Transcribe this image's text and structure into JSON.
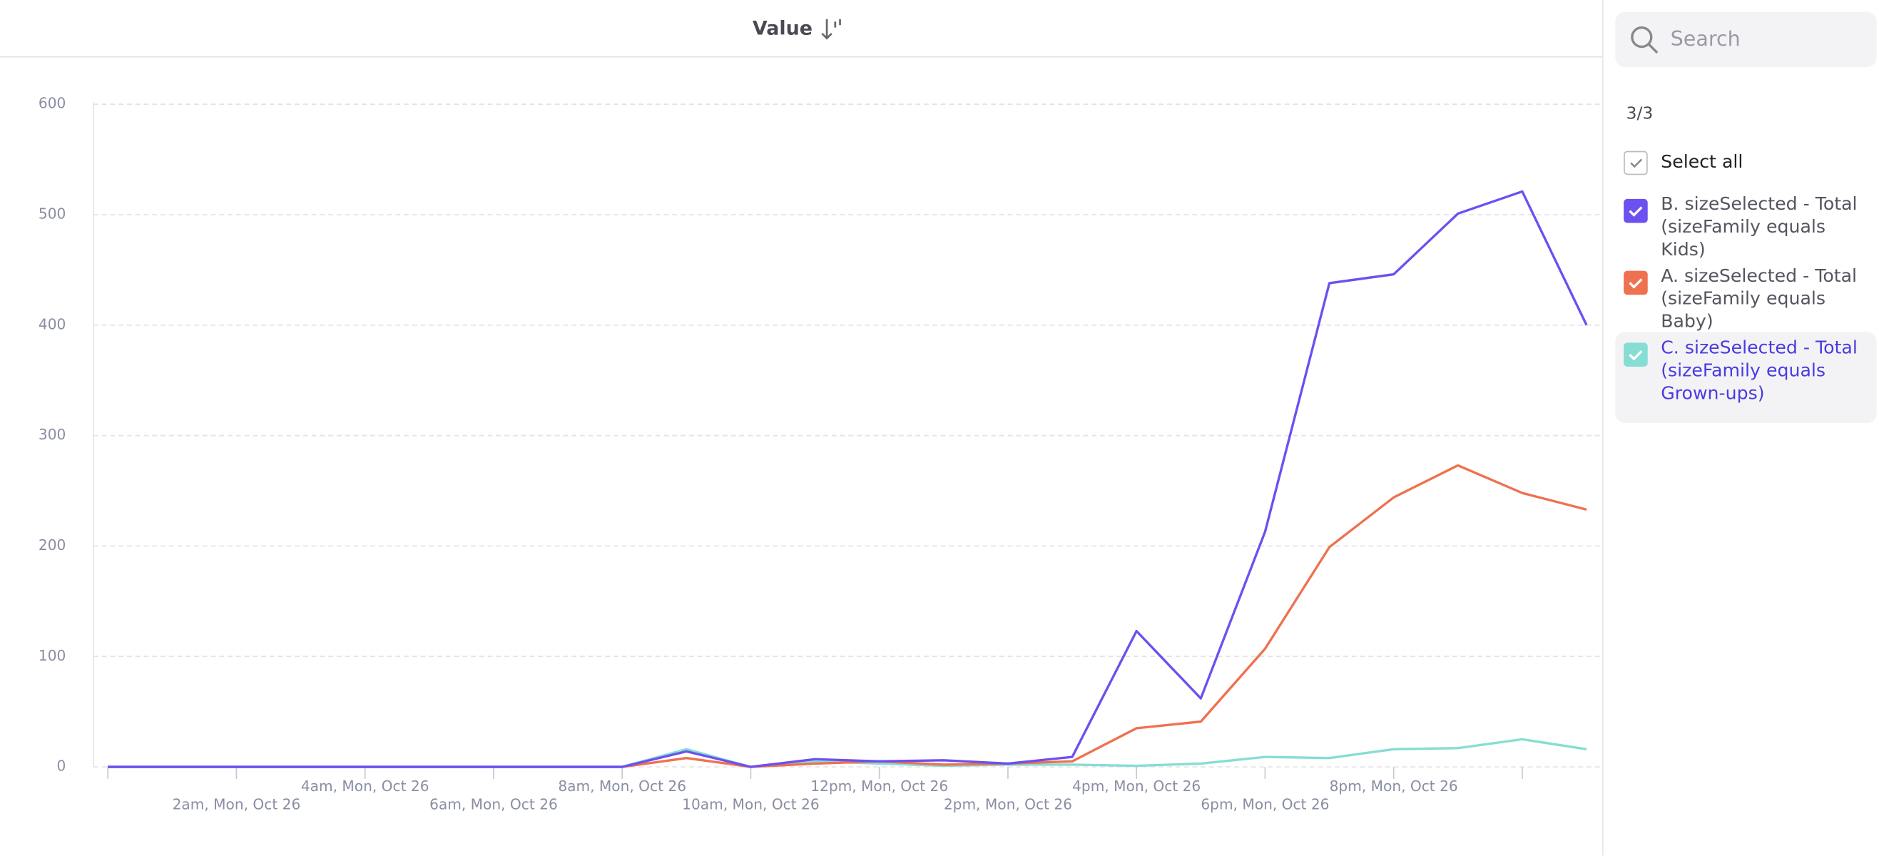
{
  "header": {
    "title": "Value"
  },
  "sidebar": {
    "search_placeholder": "Search",
    "count": "3/3",
    "select_all": "Select all"
  },
  "chart_data": {
    "type": "line",
    "categories": [
      null,
      null,
      "2am, Mon, Oct 26",
      null,
      "4am, Mon, Oct 26",
      null,
      "6am, Mon, Oct 26",
      null,
      "8am, Mon, Oct 26",
      null,
      "10am, Mon, Oct 26",
      null,
      "12pm, Mon, Oct 26",
      null,
      "2pm, Mon, Oct 26",
      null,
      "4pm, Mon, Oct 26",
      null,
      "6pm, Mon, Oct 26",
      null,
      "8pm, Mon, Oct 26",
      null,
      null,
      null
    ],
    "series": [
      {
        "name": "B. sizeSelected - Total (sizeFamily equals Kids)",
        "color": "#6c50f0",
        "values": [
          0,
          0,
          0,
          0,
          0,
          0,
          0,
          0,
          0,
          14,
          0,
          7,
          5,
          6,
          3,
          9,
          123,
          62,
          213,
          438,
          446,
          501,
          521,
          400
        ]
      },
      {
        "name": "A. sizeSelected - Total (sizeFamily equals Baby)",
        "color": "#ee7150",
        "values": [
          0,
          0,
          0,
          0,
          0,
          0,
          0,
          0,
          0,
          8,
          0,
          3,
          5,
          2,
          3,
          5,
          35,
          41,
          107,
          199,
          244,
          273,
          248,
          233
        ]
      },
      {
        "name": "C. sizeSelected - Total (sizeFamily equals Grown-ups)",
        "color": "#86ddd3",
        "values": [
          0,
          0,
          0,
          0,
          0,
          0,
          0,
          0,
          0,
          16,
          0,
          5,
          3,
          1,
          2,
          2,
          1,
          3,
          9,
          8,
          16,
          17,
          25,
          16
        ]
      }
    ],
    "ylim": [
      0,
      600
    ],
    "yticks": [
      0,
      100,
      200,
      300,
      400,
      500,
      600
    ],
    "grid": true
  }
}
